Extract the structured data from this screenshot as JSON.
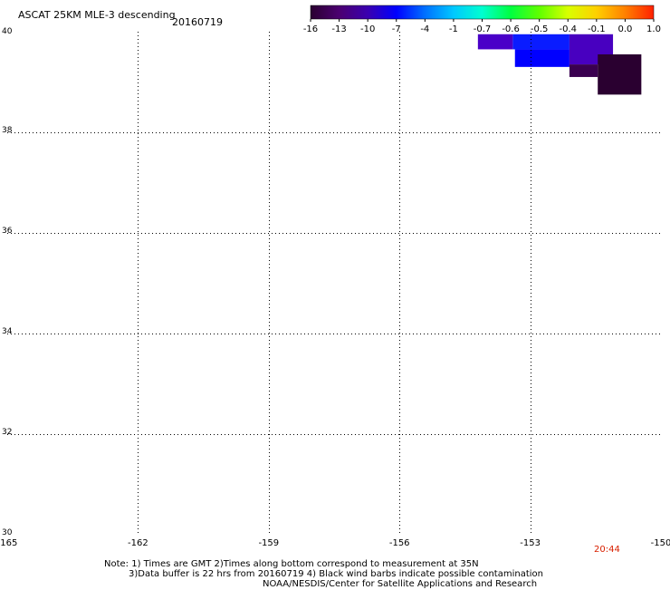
{
  "header": {
    "title": "ASCAT 25KM MLE-3 descending",
    "date": "20160719"
  },
  "colorbar": {
    "labels": [
      "-16",
      "-13",
      "-10",
      "-7",
      "-4",
      "-1",
      "-0.7",
      "-0.6",
      "-0.5",
      "-0.4",
      "-0.1",
      "0.0",
      "1.0"
    ],
    "colors": [
      "#2a0030",
      "#4b0070",
      "#3a00b0",
      "#0000ff",
      "#0070ff",
      "#00c8ff",
      "#00ffd0",
      "#00ff40",
      "#60ff00",
      "#d8ff00",
      "#ffd000",
      "#ff8000",
      "#ff2000"
    ]
  },
  "chart_data": {
    "type": "heatmap",
    "title": "ASCAT 25KM MLE-3 descending",
    "subtitle": "20160719",
    "xlabel": "",
    "ylabel": "",
    "xlim": [
      -165,
      -150
    ],
    "ylim": [
      30,
      40
    ],
    "x_ticks": [
      -165,
      -162,
      -159,
      -156,
      -153,
      -150
    ],
    "x_tick_labels": [
      "-165",
      "-162",
      "-159",
      "-156",
      "-153",
      "-150"
    ],
    "y_ticks": [
      30,
      32,
      34,
      36,
      38,
      40
    ],
    "y_tick_labels": [
      "30",
      "32",
      "34",
      "36",
      "38",
      "40"
    ],
    "grid": true,
    "cells": [
      {
        "lon0": -154.2,
        "lon1": -153.4,
        "lat0": 39.65,
        "lat1": 39.95,
        "value": -11,
        "color": "#4a00c8"
      },
      {
        "lon0": -153.4,
        "lon1": -152.1,
        "lat0": 39.65,
        "lat1": 39.95,
        "value": -8,
        "color": "#0a1cff"
      },
      {
        "lon0": -153.35,
        "lon1": -152.1,
        "lat0": 39.3,
        "lat1": 39.65,
        "value": -7,
        "color": "#0000ff"
      },
      {
        "lon0": -152.1,
        "lon1": -151.1,
        "lat0": 39.35,
        "lat1": 39.95,
        "value": -11,
        "color": "#4800c0"
      },
      {
        "lon0": -152.1,
        "lon1": -151.45,
        "lat0": 39.1,
        "lat1": 39.35,
        "value": -14,
        "color": "#3a0050"
      },
      {
        "lon0": -151.45,
        "lon1": -150.45,
        "lat0": 38.75,
        "lat1": 39.55,
        "value": -16,
        "color": "#2a0030"
      }
    ],
    "timestamp": "20:44"
  },
  "notes": {
    "line1": "Note: 1) Times are GMT 2)Times along bottom correspond to measurement at 35N",
    "line2": "3)Data buffer is 22 hrs from 20160719 4) Black wind barbs indicate possible contamination",
    "line3": "NOAA/NESDIS/Center for Satellite Applications and Research"
  }
}
